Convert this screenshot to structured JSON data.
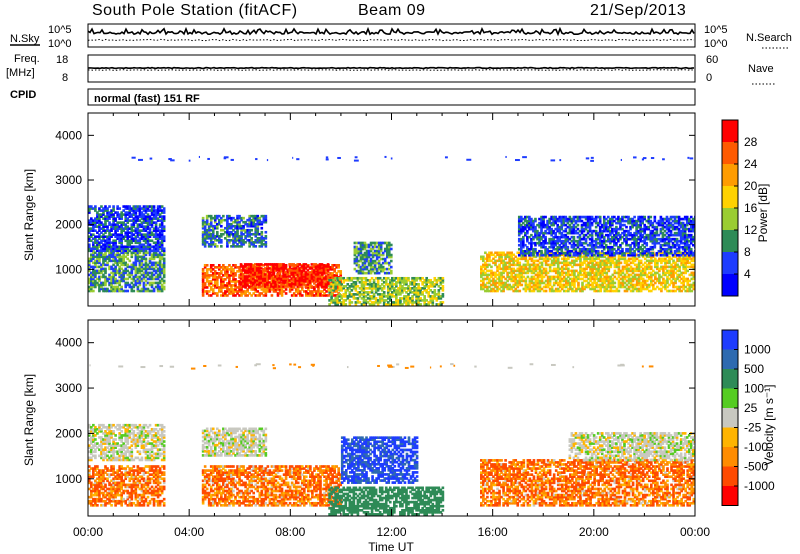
{
  "header": {
    "title": "South Pole Station (fitACF)",
    "beam": "Beam 09",
    "date": "21/Sep/2013"
  },
  "aux_panels": {
    "nsky_label": "N.Sky",
    "nsky_ticks": [
      "10^5",
      "10^0"
    ],
    "nsearch_label": "N.Search",
    "nsearch_ticks": [
      "10^5",
      "10^0"
    ],
    "freq_label_1": "Freq.",
    "freq_label_2": "[MHz]",
    "freq_ticks": [
      "18",
      "8"
    ],
    "nave_label": "Nave",
    "nave_ticks": [
      "60",
      "0"
    ],
    "cpid_label": "CPID",
    "cpid_value": "normal (fast) 151 RF"
  },
  "colorbars": {
    "power": {
      "label": "Power [dB]",
      "ticks": [
        "28",
        "24",
        "20",
        "16",
        "12",
        "8",
        "4"
      ],
      "colors": [
        "#ff0000",
        "#ff5a00",
        "#ff9c00",
        "#ffd200",
        "#9acd32",
        "#2e8b57",
        "#1e3cff",
        "#0000ff"
      ]
    },
    "velocity": {
      "label": "Velocity [m s⁻¹]",
      "ticks": [
        "1000",
        "500",
        "100",
        "25",
        "-25",
        "-100",
        "-500",
        "-1000"
      ],
      "colors": [
        "#1e3cff",
        "#2e6ab0",
        "#2e8b57",
        "#55cc22",
        "#c8c8c0",
        "#ffb400",
        "#ff8c00",
        "#ff4a00",
        "#ff0000"
      ]
    }
  },
  "chart_data": [
    {
      "type": "heatmap",
      "title": "",
      "quantity": "Power [dB]",
      "xlabel": "",
      "ylabel": "Slant Range [km]",
      "xlim": [
        "00:00",
        "00:00"
      ],
      "ylim": [
        180,
        4500
      ],
      "yticks": [
        1000,
        2000,
        3000,
        4000
      ],
      "colorscale": "power",
      "regions": [
        {
          "t": [
            0.0,
            3.0
          ],
          "r": [
            500,
            1500
          ],
          "v": 10
        },
        {
          "t": [
            0.0,
            3.0
          ],
          "r": [
            1400,
            2400
          ],
          "v": 6
        },
        {
          "t": [
            4.5,
            10.0
          ],
          "r": [
            400,
            1100
          ],
          "v": 26
        },
        {
          "t": [
            6.0,
            9.5
          ],
          "r": [
            600,
            1100
          ],
          "v": 30
        },
        {
          "t": [
            4.5,
            7.0
          ],
          "r": [
            1500,
            2200
          ],
          "v": 8
        },
        {
          "t": [
            9.5,
            14.0
          ],
          "r": [
            200,
            800
          ],
          "v": 14
        },
        {
          "t": [
            10.5,
            12.0
          ],
          "r": [
            900,
            1600
          ],
          "v": 10
        },
        {
          "t": [
            15.5,
            24.0
          ],
          "r": [
            500,
            1400
          ],
          "v": 18
        },
        {
          "t": [
            17.0,
            24.0
          ],
          "r": [
            1300,
            2200
          ],
          "v": 6
        }
      ]
    },
    {
      "type": "heatmap",
      "title": "",
      "quantity": "Velocity [m s-1]",
      "xlabel": "Time UT",
      "ylabel": "Slant Range [km]",
      "xticks": [
        "00:00",
        "04:00",
        "08:00",
        "12:00",
        "16:00",
        "20:00",
        "00:00"
      ],
      "ylim": [
        180,
        4500
      ],
      "yticks": [
        1000,
        2000,
        3000,
        4000
      ],
      "colorscale": "velocity",
      "regions": [
        {
          "t": [
            0.0,
            3.0
          ],
          "r": [
            400,
            1300
          ],
          "v": -300
        },
        {
          "t": [
            0.0,
            3.0
          ],
          "r": [
            1400,
            2200
          ],
          "v": 0
        },
        {
          "t": [
            4.5,
            7.0
          ],
          "r": [
            1500,
            2100
          ],
          "v": 0
        },
        {
          "t": [
            4.5,
            10.0
          ],
          "r": [
            400,
            1300
          ],
          "v": -300
        },
        {
          "t": [
            10.0,
            13.0
          ],
          "r": [
            900,
            1900
          ],
          "v": 800
        },
        {
          "t": [
            9.5,
            14.0
          ],
          "r": [
            200,
            800
          ],
          "v": 200
        },
        {
          "t": [
            15.5,
            24.0
          ],
          "r": [
            400,
            1400
          ],
          "v": -300
        },
        {
          "t": [
            19.0,
            24.0
          ],
          "r": [
            1400,
            2000
          ],
          "v": 0
        }
      ]
    }
  ]
}
